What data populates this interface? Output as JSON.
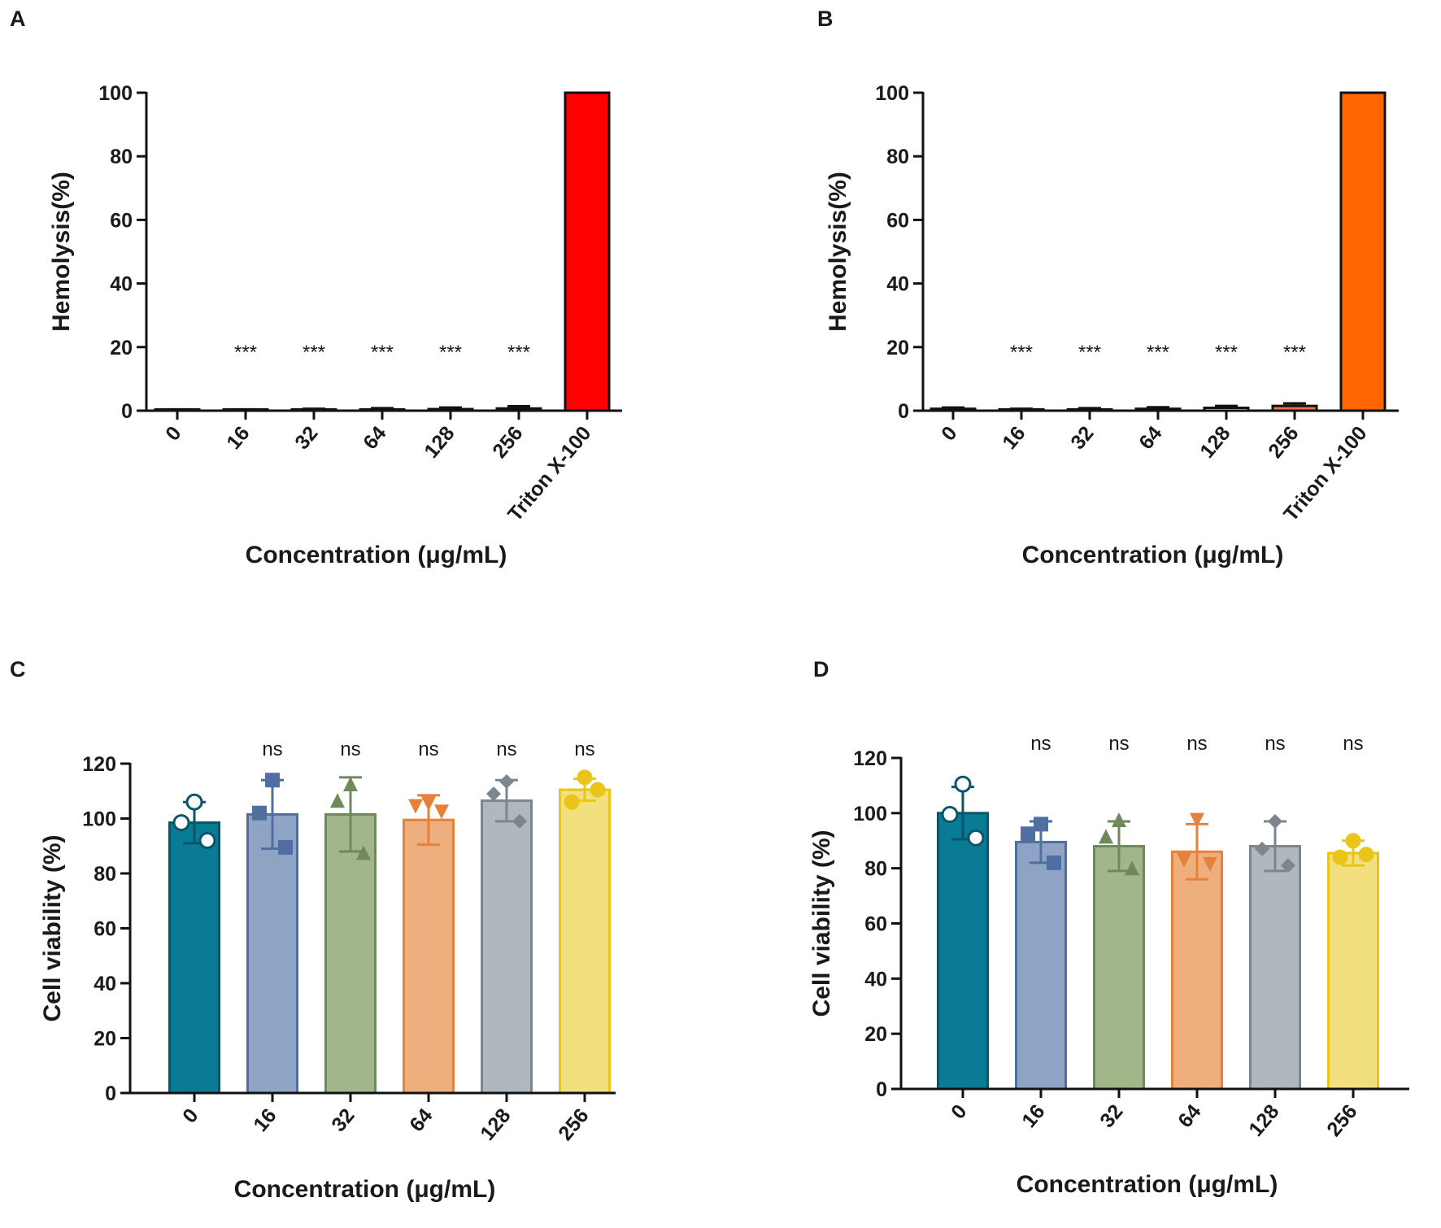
{
  "figure": {
    "panels": [
      "A",
      "B",
      "C",
      "D"
    ]
  },
  "chart_data": [
    {
      "panel": "A",
      "type": "bar",
      "title": "",
      "xlabel": "Concentration (μg/mL)",
      "ylabel": "Hemolysis(%)",
      "ylim": [
        0,
        100
      ],
      "yticks": [
        0,
        20,
        40,
        60,
        80,
        100
      ],
      "categories": [
        "0",
        "16",
        "32",
        "64",
        "128",
        "256",
        "Triton X-100"
      ],
      "values": [
        0.2,
        0.2,
        0.3,
        0.4,
        0.5,
        0.7,
        100
      ],
      "errors": [
        0.2,
        0.2,
        0.3,
        0.4,
        0.5,
        0.7,
        0
      ],
      "significance": [
        "",
        "***",
        "***",
        "***",
        "***",
        "***",
        ""
      ],
      "colors": [
        "#ffffff",
        "#ffffff",
        "#ffffff",
        "#ffffff",
        "#ffffff",
        "#ffffff",
        "#ff0000"
      ]
    },
    {
      "panel": "B",
      "type": "bar",
      "title": "",
      "xlabel": "Concentration (μg/mL)",
      "ylabel": "Hemolysis(%)",
      "ylim": [
        0,
        100
      ],
      "yticks": [
        0,
        20,
        40,
        60,
        80,
        100
      ],
      "categories": [
        "0",
        "16",
        "32",
        "64",
        "128",
        "256",
        "Triton X-100"
      ],
      "values": [
        0.6,
        0.3,
        0.4,
        0.6,
        0.9,
        1.5,
        100
      ],
      "errors": [
        0.4,
        0.3,
        0.4,
        0.5,
        0.6,
        0.8,
        0
      ],
      "significance": [
        "",
        "***",
        "***",
        "***",
        "***",
        "***",
        ""
      ],
      "colors": [
        "#ffffff",
        "#ffffff",
        "#ffffff",
        "#ffffff",
        "#ffffff",
        "#ff6a4a",
        "#ff6600"
      ]
    },
    {
      "panel": "C",
      "type": "bar",
      "title": "",
      "xlabel": "Concentration (μg/mL)",
      "ylabel": "Cell viability (%)",
      "ylim": [
        0,
        120
      ],
      "yticks": [
        0,
        20,
        40,
        60,
        80,
        100,
        120
      ],
      "categories": [
        "0",
        "16",
        "32",
        "64",
        "128",
        "256"
      ],
      "values": [
        98.5,
        101.5,
        101.5,
        99.5,
        106.5,
        110.5
      ],
      "errors": [
        7.5,
        12.5,
        13.5,
        9,
        7.5,
        4
      ],
      "significance": [
        "",
        "ns",
        "ns",
        "ns",
        "ns",
        "ns"
      ],
      "points": [
        [
          106,
          98.5,
          92
        ],
        [
          114,
          102,
          89.5
        ],
        [
          112,
          106,
          87
        ],
        [
          106,
          105,
          103
        ],
        [
          113.5,
          109,
          99
        ],
        [
          115,
          106,
          110.5
        ]
      ],
      "markers": [
        "circle-open",
        "square",
        "triangle",
        "triangle-down",
        "diamond",
        "circle"
      ],
      "colors": [
        "#0a7b94",
        "#8fa4c4",
        "#a3b68a",
        "#edaf7d",
        "#b0b7bd",
        "#f2e07e"
      ],
      "edge_colors": [
        "#0b5568",
        "#4f6fa1",
        "#6f8a5a",
        "#e7813a",
        "#7d868e",
        "#e9c51a"
      ]
    },
    {
      "panel": "D",
      "type": "bar",
      "title": "",
      "xlabel": "Concentration (μg/mL)",
      "ylabel": "Cell viability (%)",
      "ylim": [
        0,
        120
      ],
      "yticks": [
        0,
        20,
        40,
        60,
        80,
        100,
        120
      ],
      "categories": [
        "0",
        "16",
        "32",
        "64",
        "128",
        "256"
      ],
      "values": [
        100,
        89.5,
        88,
        86,
        88,
        85.5
      ],
      "errors": [
        9.5,
        7.5,
        9,
        10,
        9,
        4.5
      ],
      "significance": [
        "",
        "ns",
        "ns",
        "ns",
        "ns",
        "ns"
      ],
      "points": [
        [
          110.5,
          99.5,
          91
        ],
        [
          96,
          92.5,
          82
        ],
        [
          97,
          91,
          79.5
        ],
        [
          98,
          83.5,
          82
        ],
        [
          97,
          87,
          81
        ],
        [
          90,
          84,
          85
        ]
      ],
      "markers": [
        "circle-open",
        "square",
        "triangle",
        "triangle-down",
        "diamond",
        "circle"
      ],
      "colors": [
        "#0a7b94",
        "#8fa4c4",
        "#a3b68a",
        "#edaf7d",
        "#b0b7bd",
        "#f2e07e"
      ],
      "edge_colors": [
        "#0b5568",
        "#4f6fa1",
        "#6f8a5a",
        "#e7813a",
        "#7d868e",
        "#e9c51a"
      ]
    }
  ]
}
